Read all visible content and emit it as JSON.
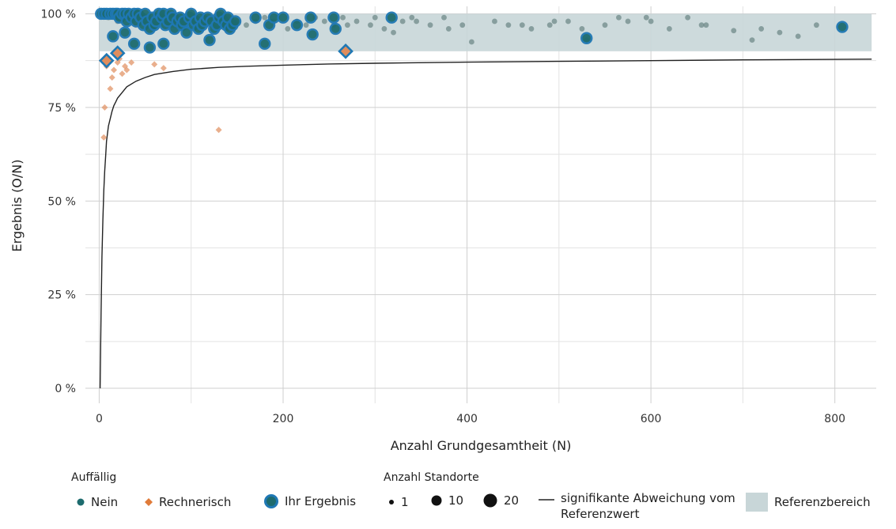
{
  "chart_data": {
    "type": "scatter",
    "xlabel": "Anzahl Grundgesamtheit (N)",
    "ylabel": "Ergebnis (O/N)",
    "xlim": [
      -15,
      845
    ],
    "ylim": [
      -4,
      102
    ],
    "x_ticks": [
      0,
      200,
      400,
      600,
      800
    ],
    "x_tick_labels": [
      "0",
      "200",
      "400",
      "600",
      "800"
    ],
    "y_ticks": [
      0,
      25,
      50,
      75,
      100
    ],
    "y_tick_labels": [
      "0 %",
      "25 %",
      "50 %",
      "75 %",
      "100 %"
    ],
    "grid": true,
    "legend_position": "bottom",
    "reference_range": {
      "name": "Referenzbereich",
      "y_min": 90,
      "y_max": 100,
      "x_min": 0,
      "x_max": 840,
      "color": "#c8d6d8"
    },
    "threshold_curve": {
      "name": "signifikante Abweichung vom Referenzwert",
      "points": [
        [
          1,
          0
        ],
        [
          2,
          20
        ],
        [
          3,
          35
        ],
        [
          4,
          45
        ],
        [
          5,
          53
        ],
        [
          6,
          58
        ],
        [
          7,
          62
        ],
        [
          8,
          66
        ],
        [
          9,
          68
        ],
        [
          10,
          70
        ],
        [
          12,
          72
        ],
        [
          14,
          74
        ],
        [
          16,
          75.5
        ],
        [
          18,
          76.5
        ],
        [
          20,
          77.5
        ],
        [
          25,
          79
        ],
        [
          30,
          80.5
        ],
        [
          40,
          82
        ],
        [
          50,
          83
        ],
        [
          60,
          83.8
        ],
        [
          80,
          84.6
        ],
        [
          100,
          85.2
        ],
        [
          130,
          85.7
        ],
        [
          160,
          86.0
        ],
        [
          200,
          86.3
        ],
        [
          250,
          86.6
        ],
        [
          300,
          86.8
        ],
        [
          400,
          87.1
        ],
        [
          500,
          87.3
        ],
        [
          600,
          87.5
        ],
        [
          700,
          87.7
        ],
        [
          840,
          87.9
        ]
      ]
    },
    "series": [
      {
        "name": "Nein",
        "color": "#4f6e6b",
        "marker": "circle",
        "points": [
          [
            340,
            99
          ],
          [
            345,
            98
          ],
          [
            360,
            97
          ],
          [
            375,
            99
          ],
          [
            380,
            96
          ],
          [
            395,
            97
          ],
          [
            405,
            92.5
          ],
          [
            430,
            98
          ],
          [
            445,
            97
          ],
          [
            460,
            97
          ],
          [
            470,
            96
          ],
          [
            490,
            97
          ],
          [
            495,
            98
          ],
          [
            510,
            98
          ],
          [
            525,
            96
          ],
          [
            530,
            93
          ],
          [
            550,
            97
          ],
          [
            565,
            99
          ],
          [
            575,
            98
          ],
          [
            595,
            99
          ],
          [
            600,
            98
          ],
          [
            620,
            96
          ],
          [
            640,
            99
          ],
          [
            655,
            97
          ],
          [
            660,
            97
          ],
          [
            690,
            95.5
          ],
          [
            710,
            93
          ],
          [
            720,
            96
          ],
          [
            740,
            95
          ],
          [
            760,
            94
          ],
          [
            780,
            97
          ],
          [
            295,
            97
          ],
          [
            300,
            99
          ],
          [
            310,
            96
          ],
          [
            320,
            95
          ],
          [
            330,
            98
          ],
          [
            280,
            98
          ],
          [
            270,
            97
          ],
          [
            265,
            99
          ],
          [
            255,
            97
          ],
          [
            245,
            98
          ],
          [
            235,
            99
          ],
          [
            225,
            97
          ],
          [
            215,
            98
          ],
          [
            205,
            96
          ],
          [
            190,
            98
          ],
          [
            180,
            99
          ],
          [
            170,
            98
          ],
          [
            160,
            97
          ],
          [
            150,
            98
          ],
          [
            140,
            99
          ],
          [
            130,
            97
          ],
          [
            120,
            98
          ],
          [
            110,
            96
          ],
          [
            100,
            99
          ],
          [
            90,
            98
          ],
          [
            80,
            97
          ],
          [
            70,
            98
          ],
          [
            60,
            99
          ],
          [
            50,
            98
          ],
          [
            40,
            97
          ],
          [
            30,
            99
          ],
          [
            20,
            98
          ],
          [
            10,
            99
          ]
        ]
      },
      {
        "name": "Rechnerisch",
        "color": "#e08d5c",
        "marker": "diamond",
        "points": [
          [
            5,
            67
          ],
          [
            6,
            75
          ],
          [
            8,
            86
          ],
          [
            12,
            80
          ],
          [
            14,
            83
          ],
          [
            16,
            85
          ],
          [
            20,
            87
          ],
          [
            22,
            88
          ],
          [
            25,
            84
          ],
          [
            28,
            86
          ],
          [
            30,
            85
          ],
          [
            35,
            87
          ],
          [
            60,
            86.5
          ],
          [
            70,
            85.5
          ],
          [
            130,
            69
          ]
        ]
      },
      {
        "name": "Ihr Ergebnis",
        "color": "#1f6d8c",
        "marker": "circle-large",
        "points": [
          [
            2,
            100
          ],
          [
            5,
            100
          ],
          [
            8,
            100
          ],
          [
            12,
            100
          ],
          [
            15,
            100
          ],
          [
            18,
            100
          ],
          [
            20,
            100
          ],
          [
            22,
            99
          ],
          [
            25,
            100
          ],
          [
            28,
            100
          ],
          [
            30,
            98
          ],
          [
            32,
            100
          ],
          [
            35,
            99
          ],
          [
            38,
            100
          ],
          [
            40,
            98
          ],
          [
            42,
            100
          ],
          [
            45,
            99
          ],
          [
            48,
            97
          ],
          [
            50,
            100
          ],
          [
            52,
            98
          ],
          [
            55,
            96
          ],
          [
            58,
            99
          ],
          [
            60,
            97
          ],
          [
            62,
            98
          ],
          [
            65,
            100
          ],
          [
            68,
            99
          ],
          [
            70,
            100
          ],
          [
            72,
            97
          ],
          [
            75,
            98
          ],
          [
            78,
            100
          ],
          [
            80,
            99
          ],
          [
            82,
            96
          ],
          [
            85,
            98
          ],
          [
            88,
            99
          ],
          [
            90,
            97
          ],
          [
            92,
            98
          ],
          [
            95,
            95
          ],
          [
            98,
            99
          ],
          [
            100,
            100
          ],
          [
            102,
            97
          ],
          [
            105,
            98
          ],
          [
            108,
            96
          ],
          [
            110,
            99
          ],
          [
            112,
            97
          ],
          [
            115,
            98
          ],
          [
            118,
            99
          ],
          [
            120,
            93
          ],
          [
            122,
            98
          ],
          [
            125,
            96
          ],
          [
            128,
            97
          ],
          [
            130,
            99
          ],
          [
            132,
            100
          ],
          [
            135,
            98
          ],
          [
            138,
            97
          ],
          [
            140,
            99
          ],
          [
            142,
            96
          ],
          [
            145,
            97
          ],
          [
            148,
            98
          ],
          [
            170,
            99
          ],
          [
            180,
            92
          ],
          [
            185,
            97
          ],
          [
            190,
            99
          ],
          [
            200,
            99
          ],
          [
            215,
            97
          ],
          [
            230,
            99
          ],
          [
            232,
            94.5
          ],
          [
            255,
            99
          ],
          [
            257,
            96
          ],
          [
            318,
            99
          ],
          [
            15,
            94
          ],
          [
            28,
            95
          ],
          [
            38,
            92
          ],
          [
            55,
            91
          ],
          [
            70,
            92
          ],
          [
            530,
            93.5
          ],
          [
            808,
            96.5
          ]
        ]
      },
      {
        "name": "Ihr Ergebnis (Rechnerisch)",
        "color": "#e08d5c",
        "marker": "diamond-large",
        "points": [
          [
            8,
            87.5
          ],
          [
            20,
            89.5
          ],
          [
            268,
            90
          ]
        ]
      }
    ],
    "legend": {
      "auffaellig_title": "Auffällig",
      "auffaellig_items": [
        "Nein",
        "Rechnerisch",
        "Ihr Ergebnis"
      ],
      "standorte_title": "Anzahl Standorte",
      "standorte_items": [
        "1",
        "10",
        "20"
      ],
      "curve_label": "signifikante Abweichung vom Referenzwert",
      "band_label": "Referenzbereich"
    }
  }
}
